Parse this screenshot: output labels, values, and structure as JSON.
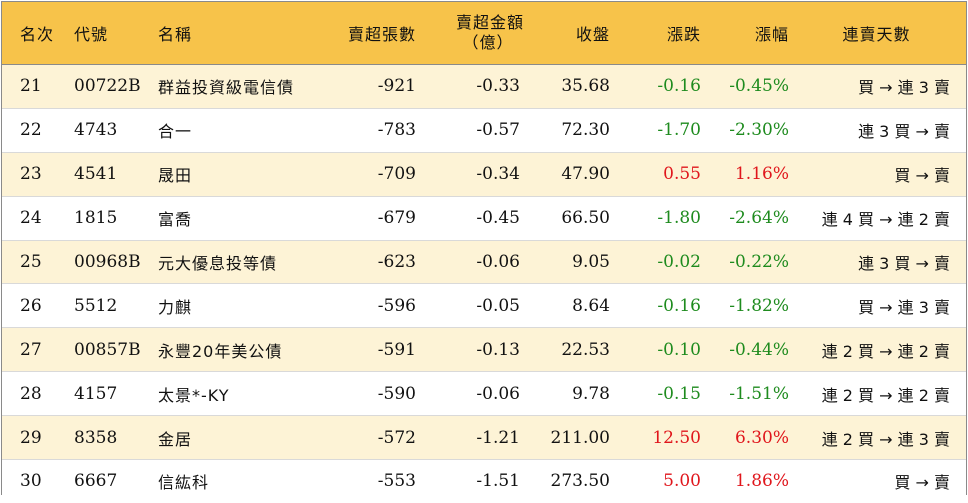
{
  "colors": {
    "header_bg": "#f7c34a",
    "odd_row_bg": "#fdf3d6",
    "up": "#e0161c",
    "down": "#1e8b1e"
  },
  "header": {
    "rank": "名次",
    "code": "代號",
    "name": "名稱",
    "sheets": "賣超張數",
    "amount_line1": "賣超金額",
    "amount_line2": "（億）",
    "close": "收盤",
    "change": "漲跌",
    "pct": "漲幅",
    "streak": "連賣天數"
  },
  "rows": [
    {
      "rank": "21",
      "code": "00722B",
      "name": "群益投資級電信債",
      "sheets": "-921",
      "amount": "-0.33",
      "close": "35.68",
      "change": "-0.16",
      "pct": "-0.45%",
      "trend": "down",
      "streak": "買 → 連 3 賣"
    },
    {
      "rank": "22",
      "code": "4743",
      "name": "合一",
      "sheets": "-783",
      "amount": "-0.57",
      "close": "72.30",
      "change": "-1.70",
      "pct": "-2.30%",
      "trend": "down",
      "streak": "連 3 買 → 賣"
    },
    {
      "rank": "23",
      "code": "4541",
      "name": "晟田",
      "sheets": "-709",
      "amount": "-0.34",
      "close": "47.90",
      "change": "0.55",
      "pct": "1.16%",
      "trend": "up",
      "streak": "買 → 賣"
    },
    {
      "rank": "24",
      "code": "1815",
      "name": "富喬",
      "sheets": "-679",
      "amount": "-0.45",
      "close": "66.50",
      "change": "-1.80",
      "pct": "-2.64%",
      "trend": "down",
      "streak": "連 4 買 → 連 2 賣"
    },
    {
      "rank": "25",
      "code": "00968B",
      "name": "元大優息投等債",
      "sheets": "-623",
      "amount": "-0.06",
      "close": "9.05",
      "change": "-0.02",
      "pct": "-0.22%",
      "trend": "down",
      "streak": "連 3 買 → 賣"
    },
    {
      "rank": "26",
      "code": "5512",
      "name": "力麒",
      "sheets": "-596",
      "amount": "-0.05",
      "close": "8.64",
      "change": "-0.16",
      "pct": "-1.82%",
      "trend": "down",
      "streak": "買 → 連 3 賣"
    },
    {
      "rank": "27",
      "code": "00857B",
      "name": "永豐20年美公債",
      "sheets": "-591",
      "amount": "-0.13",
      "close": "22.53",
      "change": "-0.10",
      "pct": "-0.44%",
      "trend": "down",
      "streak": "連 2 買 → 連 2 賣"
    },
    {
      "rank": "28",
      "code": "4157",
      "name": "太景*-KY",
      "sheets": "-590",
      "amount": "-0.06",
      "close": "9.78",
      "change": "-0.15",
      "pct": "-1.51%",
      "trend": "down",
      "streak": "連 2 買 → 連 2 賣"
    },
    {
      "rank": "29",
      "code": "8358",
      "name": "金居",
      "sheets": "-572",
      "amount": "-1.21",
      "close": "211.00",
      "change": "12.50",
      "pct": "6.30%",
      "trend": "up",
      "streak": "連 2 買 → 連 3 賣"
    },
    {
      "rank": "30",
      "code": "6667",
      "name": "信紘科",
      "sheets": "-553",
      "amount": "-1.51",
      "close": "273.50",
      "change": "5.00",
      "pct": "1.86%",
      "trend": "up",
      "streak": "買 → 賣"
    }
  ]
}
